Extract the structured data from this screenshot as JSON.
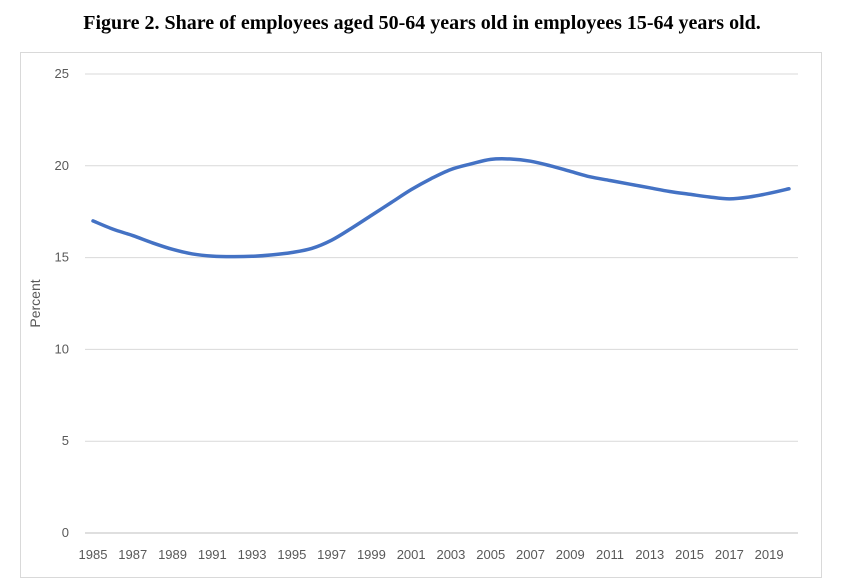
{
  "title": "Figure 2. Share of employees aged 50-64 years old in employees 15-64 years old.",
  "chart_data": {
    "type": "line",
    "title": "Figure 2. Share of employees aged 50-64 years old in employees 15-64 years old.",
    "xlabel": "",
    "ylabel": "Percent",
    "ylim": [
      0,
      25
    ],
    "yticks": [
      0,
      5,
      10,
      15,
      20,
      25
    ],
    "xlim": [
      1985,
      2020
    ],
    "xticks": [
      1985,
      1987,
      1989,
      1991,
      1993,
      1995,
      1997,
      1999,
      2001,
      2003,
      2005,
      2007,
      2009,
      2011,
      2013,
      2015,
      2017,
      2019
    ],
    "grid": true,
    "legend": "none",
    "color": "#4472c4",
    "x": [
      1985,
      1986,
      1987,
      1988,
      1989,
      1990,
      1991,
      1992,
      1993,
      1994,
      1995,
      1996,
      1997,
      1998,
      1999,
      2000,
      2001,
      2002,
      2003,
      2004,
      2005,
      2006,
      2007,
      2008,
      2009,
      2010,
      2011,
      2012,
      2013,
      2014,
      2015,
      2016,
      2017,
      2018,
      2019,
      2020
    ],
    "series": [
      {
        "values": [
          17.0,
          16.55,
          16.2,
          15.8,
          15.45,
          15.2,
          15.08,
          15.05,
          15.07,
          15.15,
          15.28,
          15.5,
          15.95,
          16.6,
          17.3,
          18.0,
          18.7,
          19.3,
          19.8,
          20.1,
          20.35,
          20.37,
          20.25,
          20.0,
          19.7,
          19.4,
          19.2,
          19.0,
          18.8,
          18.6,
          18.45,
          18.3,
          18.2,
          18.3,
          18.5,
          18.75
        ]
      }
    ]
  }
}
